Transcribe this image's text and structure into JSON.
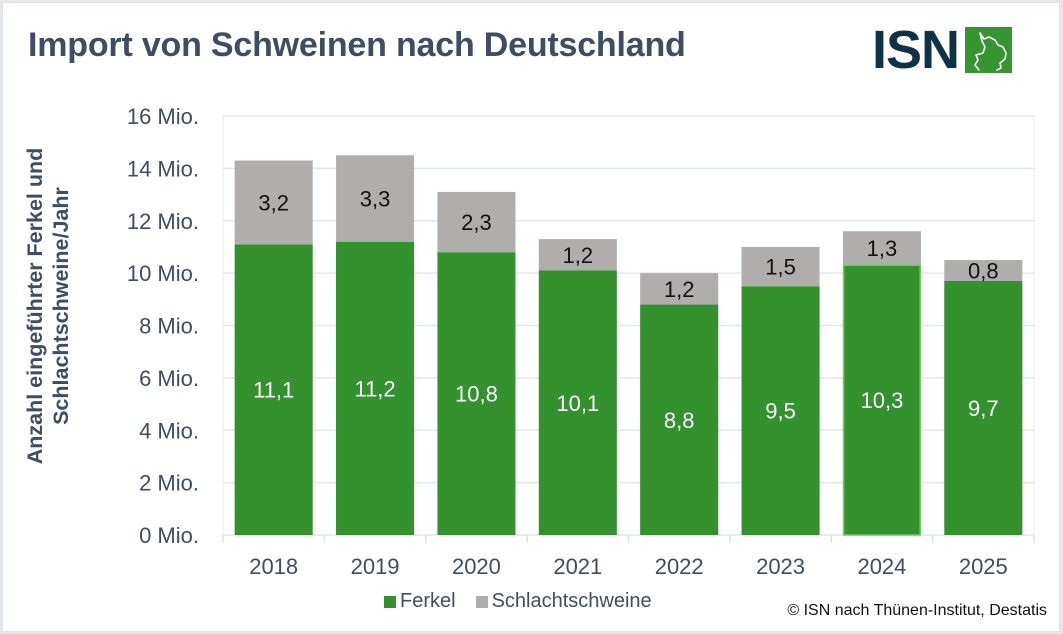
{
  "header": {
    "title": "Import von Schweinen nach Deutschland",
    "logo_text": "ISN",
    "logo_icon": "pig-outline-icon"
  },
  "colors": {
    "ferkel": "#33912e",
    "schlachtschweine": "#b0adad",
    "text": "#3f4d63",
    "grid": "#e3e7ee"
  },
  "legend": {
    "ferkel": "Ferkel",
    "schlachtschweine": "Schlachtschweine"
  },
  "source": "© ISN nach Thünen-Institut, Destatis",
  "chart_data": {
    "type": "bar",
    "stacked": true,
    "title": "Import von Schweinen nach Deutschland",
    "xlabel": "",
    "ylabel": "Anzahl eingeführter Ferkel und Schlachtschweine/Jahr",
    "categories": [
      "2018",
      "2019",
      "2020",
      "2021",
      "2022",
      "2023",
      "2024",
      "2025"
    ],
    "series": [
      {
        "name": "Ferkel",
        "values": [
          11.1,
          11.2,
          10.8,
          10.1,
          8.8,
          9.5,
          10.3,
          9.7
        ],
        "labels": [
          "11,1",
          "11,2",
          "10,8",
          "10,1",
          "8,8",
          "9,5",
          "10,3",
          "9,7"
        ]
      },
      {
        "name": "Schlachtschweine",
        "values": [
          3.2,
          3.3,
          2.3,
          1.2,
          1.2,
          1.5,
          1.3,
          0.8
        ],
        "labels": [
          "3,2",
          "3,3",
          "2,3",
          "1,2",
          "1,2",
          "1,5",
          "1,3",
          "0,8"
        ]
      }
    ],
    "ylim": [
      0,
      16
    ],
    "yticks": [
      0,
      2,
      4,
      6,
      8,
      10,
      12,
      14,
      16
    ],
    "ytick_labels": [
      "0 Mio.",
      "2 Mio.",
      "4 Mio.",
      "6 Mio.",
      "8 Mio.",
      "10 Mio.",
      "12 Mio.",
      "14 Mio.",
      "16 Mio."
    ],
    "unit": "Mio.",
    "grid": true,
    "legend_position": "bottom"
  }
}
